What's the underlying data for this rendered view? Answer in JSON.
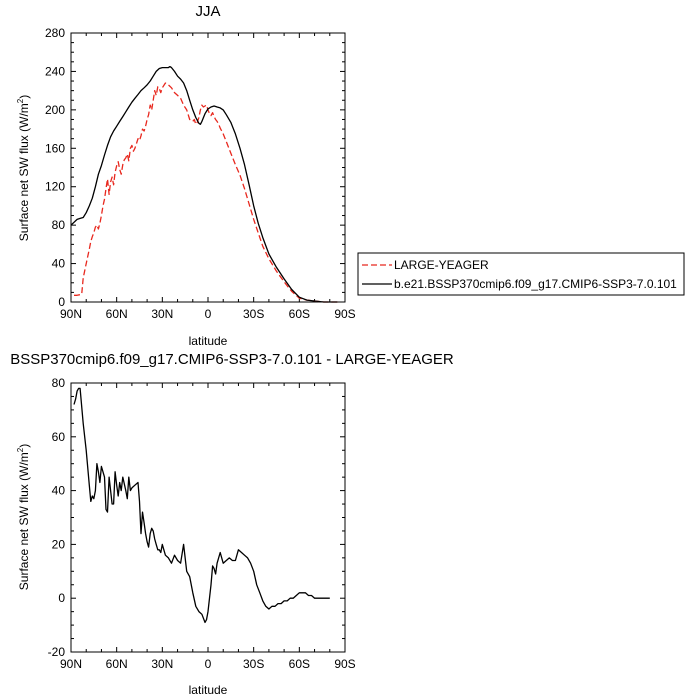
{
  "chart_data": [
    {
      "type": "line",
      "title": "JJA",
      "ylabel": "Surface net SW flux (W/m",
      "ylabel_sup": "2",
      "ylabel_end": ")",
      "xlabel": "latitude",
      "ylim": [
        0,
        280
      ],
      "yticks": [
        0,
        40,
        80,
        120,
        160,
        200,
        240,
        280
      ],
      "xlim": [
        90,
        -90
      ],
      "xticks": [
        90,
        60,
        30,
        0,
        -30,
        -60,
        -90
      ],
      "xticklabels": [
        "90N",
        "60N",
        "30N",
        "0",
        "30S",
        "60S",
        "90S"
      ],
      "legend_position": "right",
      "series": [
        {
          "name": "LARGE-YEAGER",
          "style": "dashed",
          "color": "#e8281e",
          "x": [
            88,
            86,
            83,
            82,
            80,
            78,
            77,
            76,
            75,
            74,
            73,
            72,
            71,
            70,
            69,
            68,
            67,
            66,
            65,
            64,
            63,
            62,
            61,
            60,
            59,
            58,
            57,
            56,
            55,
            54,
            53,
            52,
            51,
            50,
            49,
            48,
            47,
            46,
            45,
            44,
            43,
            42,
            41,
            40,
            39,
            38,
            37,
            36,
            35,
            34,
            33,
            32,
            31,
            30,
            28,
            26,
            24,
            22,
            20,
            18,
            16,
            14,
            12,
            10,
            9,
            8,
            7,
            6,
            5,
            4,
            3,
            2,
            1,
            0,
            -1,
            -2,
            -3,
            -4,
            -5,
            -6,
            -7,
            -8,
            -10,
            -12,
            -15,
            -18,
            -21,
            -24,
            -27,
            -30,
            -33,
            -36,
            -40,
            -45,
            -50,
            -55,
            -60,
            -65,
            -70,
            -73,
            -76,
            -80,
            -85
          ],
          "y": [
            7,
            7,
            8,
            25,
            40,
            55,
            63,
            68,
            72,
            78,
            80,
            76,
            82,
            90,
            100,
            107,
            118,
            128,
            112,
            125,
            130,
            122,
            135,
            142,
            146,
            138,
            133,
            143,
            148,
            150,
            154,
            147,
            160,
            163,
            157,
            160,
            165,
            170,
            168,
            173,
            180,
            178,
            183,
            190,
            195,
            205,
            200,
            210,
            220,
            215,
            224,
            222,
            218,
            223,
            228,
            226,
            223,
            218,
            215,
            212,
            205,
            200,
            190,
            188,
            190,
            185,
            187,
            192,
            200,
            205,
            203,
            204,
            205,
            200,
            196,
            194,
            197,
            193,
            190,
            188,
            185,
            181,
            175,
            167,
            155,
            143,
            132,
            118,
            102,
            86,
            72,
            58,
            45,
            32,
            21,
            11,
            4,
            2,
            1,
            0.5,
            0,
            0,
            0
          ]
        },
        {
          "name": "b.e21.BSSP370cmip6.f09_g17.CMIP6-SSP3-7.0.101",
          "style": "solid",
          "color": "#000000",
          "x": [
            90,
            88,
            86,
            84,
            82,
            80,
            78,
            76,
            74,
            72,
            70,
            68,
            66,
            64,
            62,
            60,
            58,
            56,
            54,
            52,
            50,
            48,
            46,
            44,
            42,
            40,
            38,
            36,
            34,
            32,
            30,
            28,
            26,
            25,
            24,
            22,
            20,
            18,
            16,
            14,
            12,
            10,
            8,
            6,
            5,
            4,
            2,
            0,
            -2,
            -4,
            -6,
            -8,
            -10,
            -12,
            -15,
            -18,
            -21,
            -24,
            -27,
            -30,
            -33,
            -36,
            -40,
            -45,
            -50,
            -55,
            -60,
            -65,
            -70,
            -73,
            -76,
            -80,
            -85
          ],
          "y": [
            80,
            83,
            86,
            87,
            88,
            93,
            100,
            108,
            120,
            133,
            142,
            153,
            163,
            172,
            178,
            183,
            188,
            193,
            198,
            203,
            208,
            212,
            216,
            220,
            223,
            226,
            230,
            235,
            240,
            243,
            244,
            244,
            244,
            245,
            244,
            240,
            235,
            232,
            228,
            220,
            210,
            200,
            192,
            186,
            185,
            188,
            196,
            201,
            203,
            204,
            203,
            202,
            200,
            195,
            187,
            175,
            160,
            143,
            122,
            100,
            82,
            67,
            50,
            36,
            24,
            13,
            5,
            2,
            1,
            0.5,
            0,
            0,
            0
          ]
        }
      ]
    },
    {
      "type": "line",
      "title": "BSSP370cmip6.f09_g17.CMIP6-SSP3-7.0.101 - LARGE-YEAGER",
      "ylabel": "Surface net SW flux (W/m",
      "ylabel_sup": "2",
      "ylabel_end": ")",
      "xlabel": "latitude",
      "ylim": [
        -20,
        80
      ],
      "yticks": [
        -20,
        0,
        20,
        40,
        60,
        80
      ],
      "xlim": [
        90,
        -90
      ],
      "xticks": [
        90,
        60,
        30,
        0,
        -30,
        -60,
        -90
      ],
      "xticklabels": [
        "90N",
        "60N",
        "30N",
        "0",
        "30S",
        "60S",
        "90S"
      ],
      "series": [
        {
          "style": "solid",
          "color": "#000000",
          "x": [
            88,
            87,
            86,
            85,
            84,
            82,
            80,
            78,
            77,
            76,
            75,
            74,
            73,
            72,
            71,
            70,
            68,
            67,
            66,
            65,
            64,
            63,
            62,
            61,
            60,
            59,
            58,
            57,
            56,
            54,
            53,
            52,
            51,
            50,
            48,
            46,
            45,
            44,
            43,
            42,
            41,
            40,
            39,
            38,
            37,
            36,
            35,
            34,
            33,
            32,
            31,
            30,
            28,
            26,
            24,
            22,
            20,
            18,
            16,
            14,
            12,
            10,
            8,
            6,
            4,
            2,
            1,
            0,
            -1,
            -2,
            -3,
            -4,
            -5,
            -6,
            -8,
            -10,
            -12,
            -14,
            -16,
            -18,
            -20,
            -22,
            -24,
            -26,
            -28,
            -30,
            -32,
            -34,
            -36,
            -38,
            -40,
            -42,
            -44,
            -46,
            -48,
            -50,
            -52,
            -54,
            -56,
            -58,
            -60,
            -62,
            -64,
            -66,
            -68,
            -70,
            -72,
            -74,
            -76,
            -78,
            -80
          ],
          "y": [
            72,
            74,
            77,
            78,
            78,
            65,
            55,
            42,
            36,
            38,
            37,
            40,
            50,
            47,
            43,
            49,
            45,
            33,
            32,
            45,
            40,
            35,
            35,
            47,
            42,
            38,
            43,
            40,
            45,
            40,
            37,
            45,
            40,
            41,
            42,
            43,
            36,
            24,
            32,
            28,
            24,
            21,
            19,
            24,
            26,
            25,
            22,
            20,
            18,
            18,
            17,
            20,
            16,
            15,
            13,
            16,
            14,
            13,
            20,
            10,
            8,
            2,
            -3,
            -5,
            -6,
            -9,
            -8,
            -5,
            0,
            5,
            12,
            11,
            9,
            13,
            17,
            13,
            14,
            15,
            14,
            14,
            18,
            17,
            16,
            15,
            13,
            10,
            5,
            2,
            -1,
            -3,
            -4,
            -3,
            -3,
            -2,
            -2,
            -1,
            -1,
            0,
            0,
            1,
            2,
            2,
            2,
            1,
            1,
            0,
            0,
            0,
            0,
            0,
            0
          ]
        }
      ]
    }
  ]
}
